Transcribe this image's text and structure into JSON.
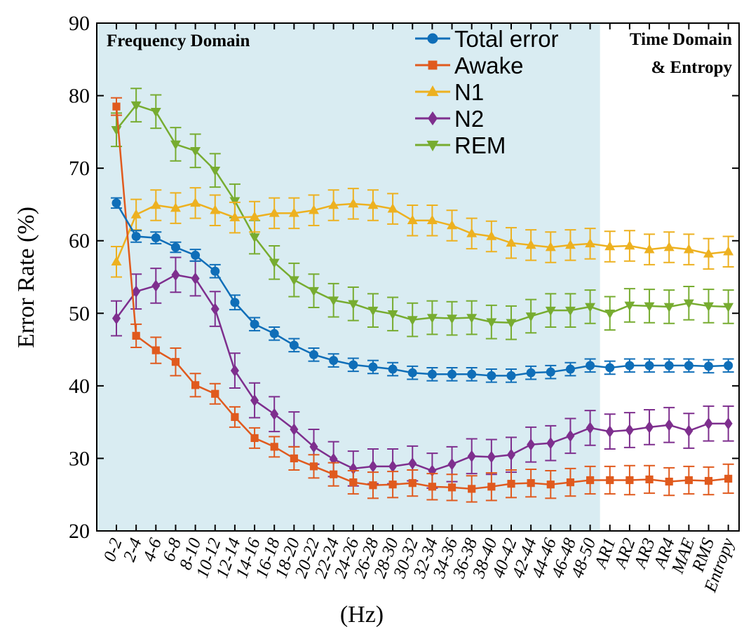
{
  "chart_data": {
    "type": "line",
    "title": "",
    "xlabel": "(Hz)",
    "ylabel": "Error Rate (%)",
    "ylim": [
      20,
      90
    ],
    "yticks": [
      20,
      30,
      40,
      50,
      60,
      70,
      80,
      90
    ],
    "grid": false,
    "legend_position": "top-center",
    "categories": [
      "0-2",
      "2-4",
      "4-6",
      "6-8",
      "8-10",
      "10-12",
      "12-14",
      "14-16",
      "16-18",
      "18-20",
      "20-22",
      "22-24",
      "24-26",
      "26-28",
      "28-30",
      "30-32",
      "32-34",
      "34-36",
      "36-38",
      "38-40",
      "40-42",
      "42-44",
      "44-46",
      "46-48",
      "48-50",
      "AR1",
      "AR2",
      "AR3",
      "AR4",
      "MAE",
      "RMS",
      "Entropy"
    ],
    "regions": [
      {
        "label": "Frequency Domain",
        "from": "0-2",
        "to": "48-50",
        "color": "#d9ecf2"
      },
      {
        "label_lines": [
          "Time Domain",
          "& Entropy"
        ],
        "from": "AR1",
        "to": "Entropy",
        "color": "#ffffff"
      }
    ],
    "series": [
      {
        "name": "Total error",
        "color": "#0f6eb8",
        "marker": "circle",
        "values": [
          65.2,
          60.6,
          60.4,
          59.1,
          58.0,
          55.8,
          51.5,
          48.5,
          47.2,
          45.6,
          44.3,
          43.5,
          42.9,
          42.6,
          42.3,
          41.8,
          41.6,
          41.6,
          41.6,
          41.4,
          41.4,
          41.8,
          41.9,
          42.3,
          42.8,
          42.5,
          42.8,
          42.8,
          42.8,
          42.8,
          42.7,
          42.8
        ],
        "errors": [
          0.7,
          0.8,
          0.8,
          0.7,
          0.8,
          0.9,
          1.0,
          0.9,
          0.9,
          0.9,
          0.9,
          0.9,
          0.9,
          0.9,
          0.9,
          0.9,
          0.9,
          0.9,
          0.9,
          0.9,
          0.9,
          0.9,
          0.9,
          0.9,
          0.9,
          0.9,
          0.9,
          0.9,
          0.9,
          0.9,
          0.9,
          0.9
        ]
      },
      {
        "name": "Awake",
        "color": "#e05a1e",
        "marker": "square",
        "values": [
          78.5,
          46.9,
          44.9,
          43.3,
          40.1,
          38.9,
          35.7,
          32.8,
          31.6,
          30.0,
          28.9,
          27.8,
          26.7,
          26.3,
          26.4,
          26.6,
          26.1,
          26.0,
          25.8,
          26.1,
          26.5,
          26.6,
          26.4,
          26.7,
          27.0,
          27.0,
          27.0,
          27.1,
          26.8,
          27.0,
          26.9,
          27.2
        ],
        "errors": [
          1.2,
          1.6,
          1.8,
          1.9,
          1.6,
          1.4,
          1.4,
          1.4,
          1.4,
          1.6,
          1.6,
          1.6,
          1.6,
          1.8,
          1.8,
          1.8,
          1.8,
          1.8,
          1.8,
          1.9,
          1.9,
          1.9,
          1.9,
          1.9,
          1.9,
          1.9,
          2.0,
          1.9,
          1.9,
          1.9,
          1.9,
          2.0
        ]
      },
      {
        "name": "N1",
        "color": "#edb120",
        "marker": "triangle-up",
        "values": [
          57.1,
          63.6,
          64.9,
          64.5,
          65.2,
          64.2,
          63.2,
          63.3,
          63.8,
          63.8,
          64.2,
          64.9,
          65.1,
          64.9,
          64.4,
          62.8,
          62.8,
          62.1,
          61.0,
          60.6,
          59.7,
          59.4,
          59.1,
          59.4,
          59.6,
          59.2,
          59.3,
          58.8,
          59.1,
          58.8,
          58.2,
          58.5
        ]
      },
      {
        "name": "N2",
        "color": "#7e2f8e",
        "marker": "diamond",
        "values": [
          49.3,
          53.0,
          53.8,
          55.3,
          54.8,
          50.6,
          42.1,
          38.0,
          36.1,
          34.0,
          31.6,
          29.9,
          28.6,
          28.9,
          28.9,
          29.3,
          28.3,
          29.2,
          30.3,
          30.2,
          30.5,
          31.9,
          32.1,
          33.1,
          34.2,
          33.7,
          33.9,
          34.3,
          34.6,
          33.8,
          34.8,
          34.8
        ]
      },
      {
        "name": "REM",
        "color": "#77ac30",
        "marker": "triangle-down",
        "values": [
          75.3,
          78.7,
          77.8,
          73.3,
          72.4,
          69.7,
          65.5,
          60.5,
          57.0,
          54.6,
          53.1,
          51.8,
          51.3,
          50.4,
          49.9,
          49.1,
          49.4,
          49.3,
          49.4,
          48.8,
          48.7,
          49.6,
          50.4,
          50.4,
          50.9,
          50.0,
          51.1,
          51.0,
          50.9,
          51.4,
          51.0,
          50.9
        ]
      }
    ]
  }
}
